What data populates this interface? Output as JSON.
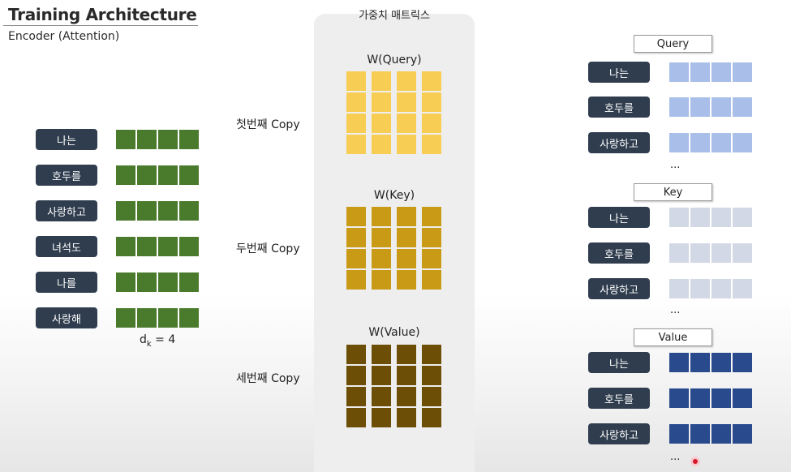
{
  "header": {
    "title": "Training Architecture",
    "subtitle": "Encoder (Attention)"
  },
  "encoder": {
    "words": [
      "나는",
      "호두를",
      "사랑하고",
      "녀석도",
      "나를",
      "사랑해"
    ],
    "dk_label": "d",
    "dk_sub": "k",
    "dk_value": " = 4",
    "embedding_color": "#4a7a2c"
  },
  "weights": {
    "panel_title": "가중치 매트릭스",
    "query": {
      "label": "W(Query)",
      "copy": "첫번째 Copy",
      "color": "#f7cd53"
    },
    "key": {
      "label": "W(Key)",
      "copy": "두번째 Copy",
      "color": "#c99a16"
    },
    "value": {
      "label": "W(Value)",
      "copy": "세번째 Copy",
      "color": "#6c4e07"
    }
  },
  "outputs": {
    "query": {
      "label": "Query",
      "words": [
        "나는",
        "호두를",
        "사랑하고"
      ],
      "ellipsis": "...",
      "color": "#a9bfea"
    },
    "key": {
      "label": "Key",
      "words": [
        "나는",
        "호두를",
        "사랑하고"
      ],
      "ellipsis": "...",
      "color": "#d2d8e6"
    },
    "value": {
      "label": "Value",
      "words": [
        "나는",
        "호두를",
        "사랑하고"
      ],
      "ellipsis": "...",
      "color": "#2a4a8e"
    }
  }
}
